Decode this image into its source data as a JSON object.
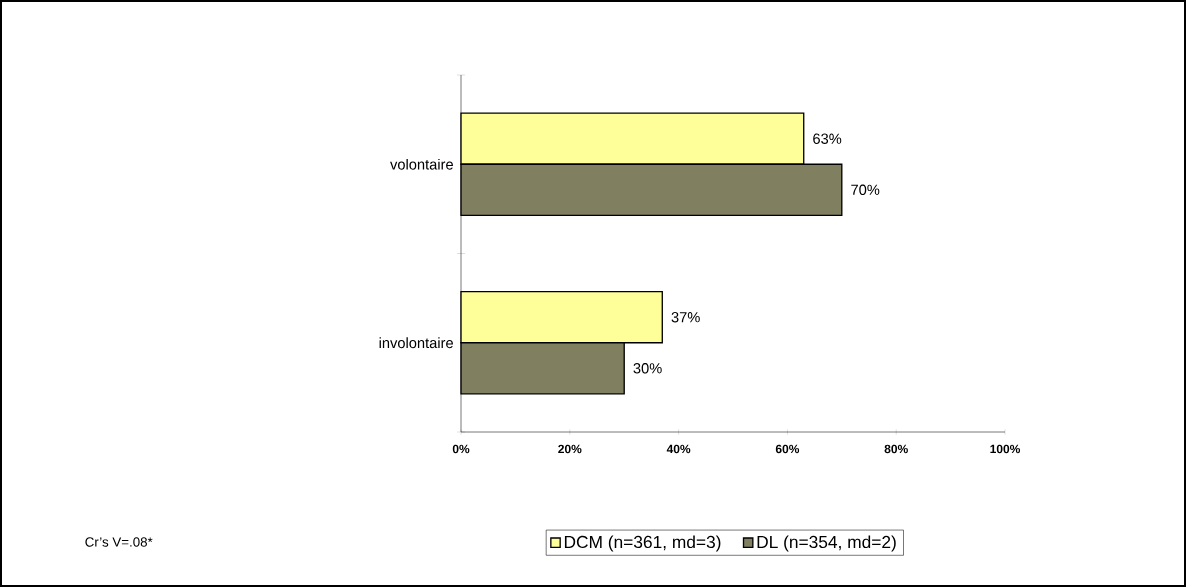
{
  "chart_data": {
    "type": "bar",
    "orientation": "horizontal",
    "categories": [
      "volontaire",
      "involontaire"
    ],
    "series": [
      {
        "name": "DCM (n=361, md=3)",
        "color": "#ffff99",
        "values": [
          63,
          37
        ],
        "value_labels": [
          "63%",
          "37%"
        ]
      },
      {
        "name": "DL (n=354, md=2)",
        "color": "#808060",
        "values": [
          70,
          30
        ],
        "value_labels": [
          "70%",
          "30%"
        ]
      }
    ],
    "xlim": [
      0,
      100
    ],
    "xticks": [
      {
        "value": 0,
        "label": "0%"
      },
      {
        "value": 20,
        "label": "20%"
      },
      {
        "value": 40,
        "label": "40%"
      },
      {
        "value": 60,
        "label": "60%"
      },
      {
        "value": 80,
        "label": "80%"
      },
      {
        "value": 100,
        "label": "100%"
      }
    ],
    "legend": "bottom",
    "annotations": [
      "Cr’s V=.08*"
    ]
  }
}
